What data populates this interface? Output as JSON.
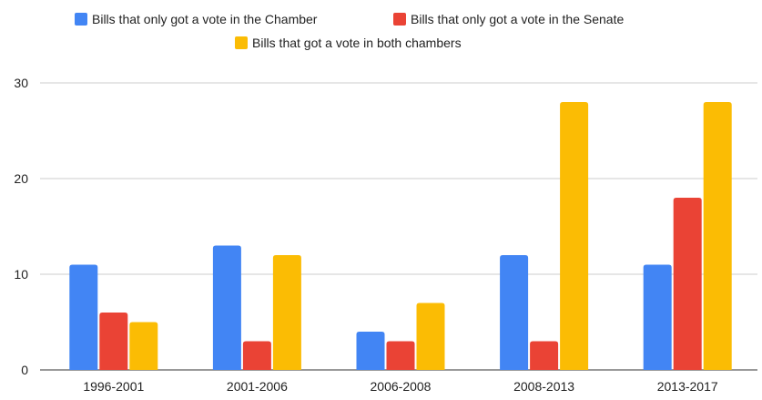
{
  "chart_data": {
    "type": "bar",
    "title": "",
    "xlabel": "",
    "ylabel": "",
    "categories": [
      "1996-2001",
      "2001-2006",
      "2006-2008",
      "2008-2013",
      "2013-2017"
    ],
    "series": [
      {
        "name": "Bills that only got a vote in the Chamber",
        "color": "#4285f4",
        "values": [
          11,
          13,
          4,
          12,
          11
        ]
      },
      {
        "name": "Bills that only got a vote in the Senate",
        "color": "#ea4335",
        "values": [
          6,
          3,
          3,
          3,
          18
        ]
      },
      {
        "name": "Bills that got a vote in both chambers",
        "color": "#fbbc04",
        "values": [
          5,
          12,
          7,
          28,
          28
        ]
      }
    ],
    "ylim": [
      0,
      30
    ],
    "yticks": [
      0,
      10,
      20,
      30
    ],
    "grid": true,
    "legend_position": "top"
  }
}
